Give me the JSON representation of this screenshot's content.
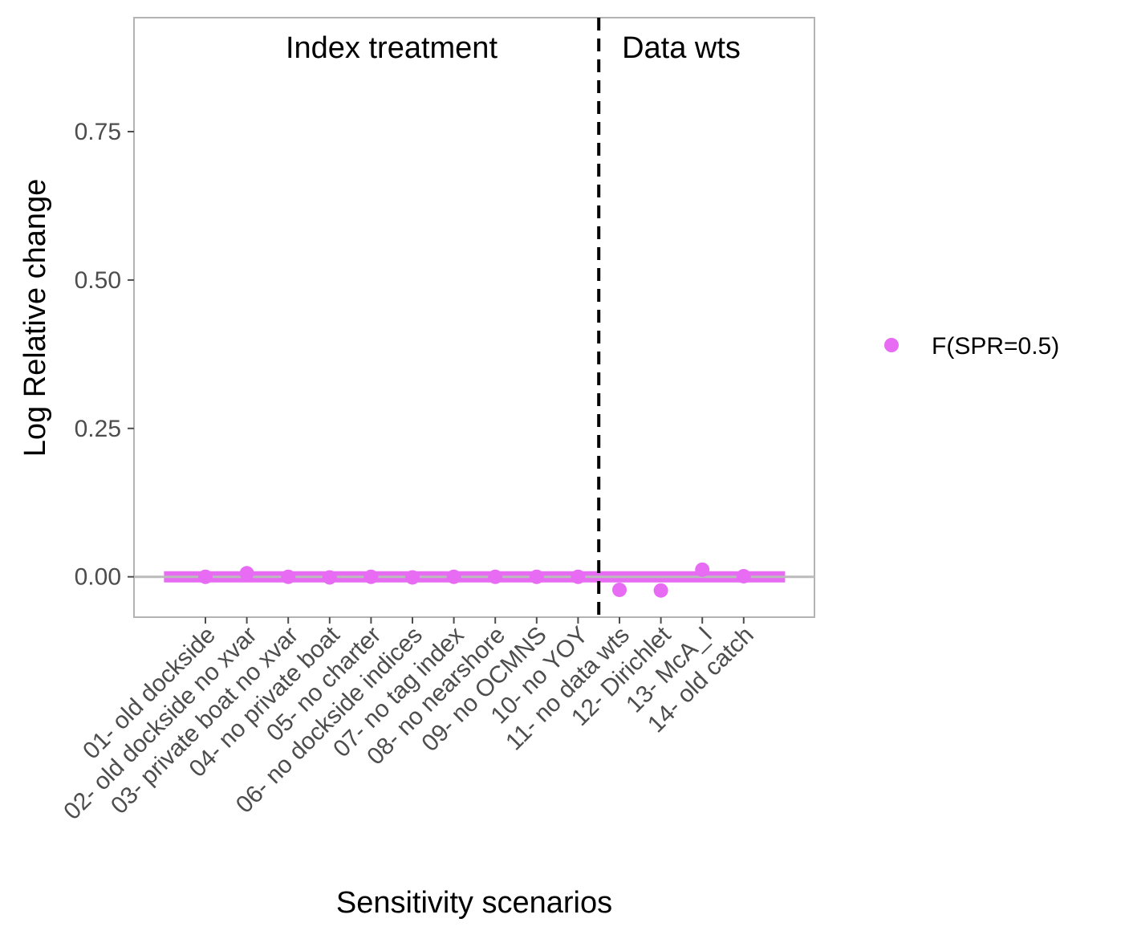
{
  "chart_data": {
    "type": "scatter",
    "title": "",
    "xlabel": "Sensitivity scenarios",
    "ylabel": "Log Relative change",
    "categories": [
      "01- old dockside",
      "02- old dockside no xvar",
      "03- private boat no xvar",
      "04- no private boat",
      "05- no charter",
      "06- no dockside indices",
      "07- no tag index",
      "08- no nearshore",
      "09- no OCMNS",
      "10- no YOY",
      "11- no data wts",
      "12- Dirichlet",
      "13- McA_I",
      "14- old catch"
    ],
    "series": [
      {
        "name": "F(SPR=0.5)",
        "color": "#e76bf3",
        "values": [
          0.0,
          0.006,
          0.0,
          -0.001,
          0.0,
          -0.001,
          0.0,
          0.0,
          0.0,
          0.0,
          -0.022,
          -0.023,
          0.012,
          0.001
        ]
      }
    ],
    "reference_line": {
      "y": 0,
      "color": "#bbbbbb"
    },
    "band": {
      "y": 0,
      "color": "#e76bf3",
      "from_category": "01- old dockside",
      "to_category": "14- old catch"
    },
    "divider": {
      "after_category": "10- no YOY",
      "style": "dashed",
      "color": "#000000"
    },
    "section_labels": [
      "Index treatment",
      "Data wts"
    ],
    "yticks": [
      0.0,
      0.25,
      0.5,
      0.75
    ],
    "ytick_labels": [
      "0.00",
      "0.25",
      "0.50",
      "0.75"
    ],
    "ylim": [
      -0.068,
      0.942
    ],
    "grid": false,
    "legend_position": "right"
  }
}
